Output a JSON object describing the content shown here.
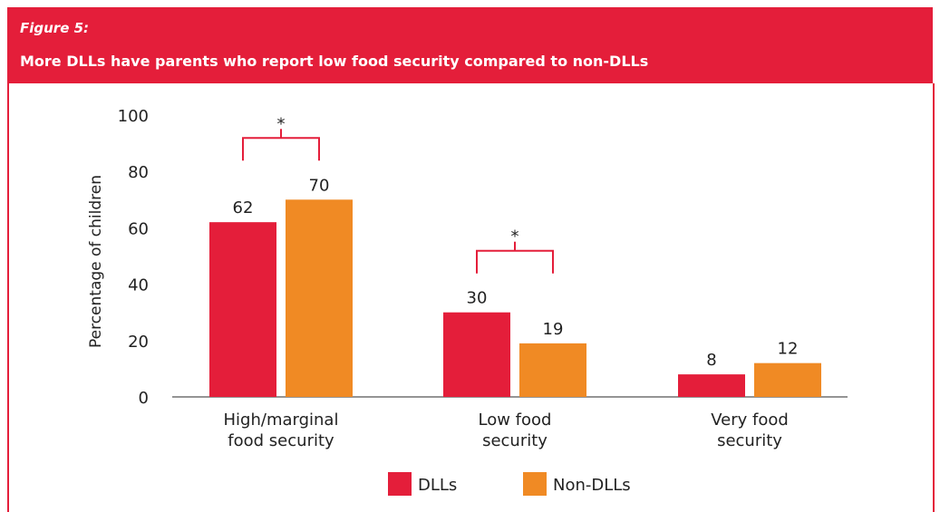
{
  "header": {
    "figure_label": "Figure 5:",
    "title": "More DLLs have parents who report low food security compared to non-DLLs"
  },
  "colors": {
    "banner": "#e41e3a",
    "dlls": "#e41e3a",
    "non_dlls": "#f08a24",
    "bracket": "#e41e3a"
  },
  "chart_data": {
    "type": "bar",
    "categories": [
      [
        "High/marginal",
        "food security"
      ],
      [
        "Low food",
        "security"
      ],
      [
        "Very food",
        "security"
      ]
    ],
    "series": [
      {
        "name": "DLLs",
        "values": [
          62,
          30,
          8
        ]
      },
      {
        "name": "Non-DLLs",
        "values": [
          70,
          19,
          12
        ]
      }
    ],
    "ylabel": "Percentage of children",
    "ylim": [
      0,
      100
    ],
    "yticks": [
      0,
      20,
      40,
      60,
      80,
      100
    ],
    "significance": [
      {
        "category_index": 0,
        "marker": "*"
      },
      {
        "category_index": 1,
        "marker": "*"
      }
    ],
    "legend_position": "bottom"
  }
}
